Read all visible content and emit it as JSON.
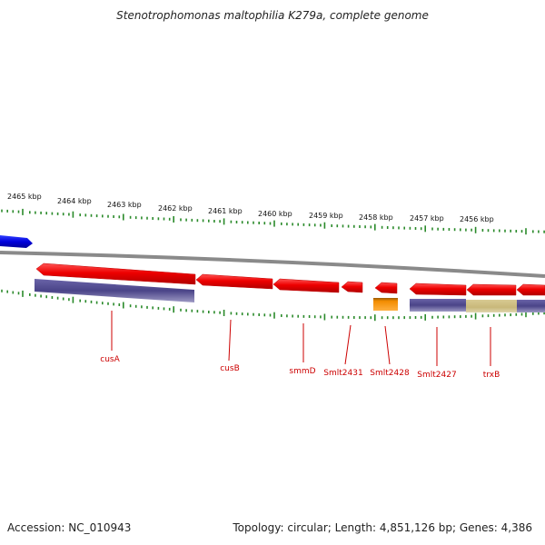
{
  "title": "Stenotrophomonas maltophilia K279a, complete genome",
  "footer": {
    "accession": "Accession: NC_010943",
    "summary": "Topology: circular; Length: 4,851,126 bp; Genes: 4,386"
  },
  "ruler": {
    "ticks": [
      {
        "label": "2465 kbp"
      },
      {
        "label": "2464 kbp"
      },
      {
        "label": "2463 kbp"
      },
      {
        "label": "2462 kbp"
      },
      {
        "label": "2461 kbp"
      },
      {
        "label": "2460 kbp"
      },
      {
        "label": "2459 kbp"
      },
      {
        "label": "2458 kbp"
      },
      {
        "label": "2457 kbp"
      },
      {
        "label": "2456 kbp"
      }
    ]
  },
  "genes": [
    {
      "label": "cusA"
    },
    {
      "label": "cusB"
    },
    {
      "label": "smmD"
    },
    {
      "label": "Smlt2431"
    },
    {
      "label": "Smlt2428"
    },
    {
      "label": "Smlt2427"
    },
    {
      "label": "trxB"
    }
  ],
  "colors": {
    "gene": "#ee0000",
    "gene_label": "#cc0000",
    "domain_purple": "#4a4488",
    "domain_tan": "#c8b87a",
    "domain_orange": "#f28c00",
    "forward_gene": "#0000dd",
    "tick": "#2a8a2a",
    "backbone": "#888888"
  }
}
